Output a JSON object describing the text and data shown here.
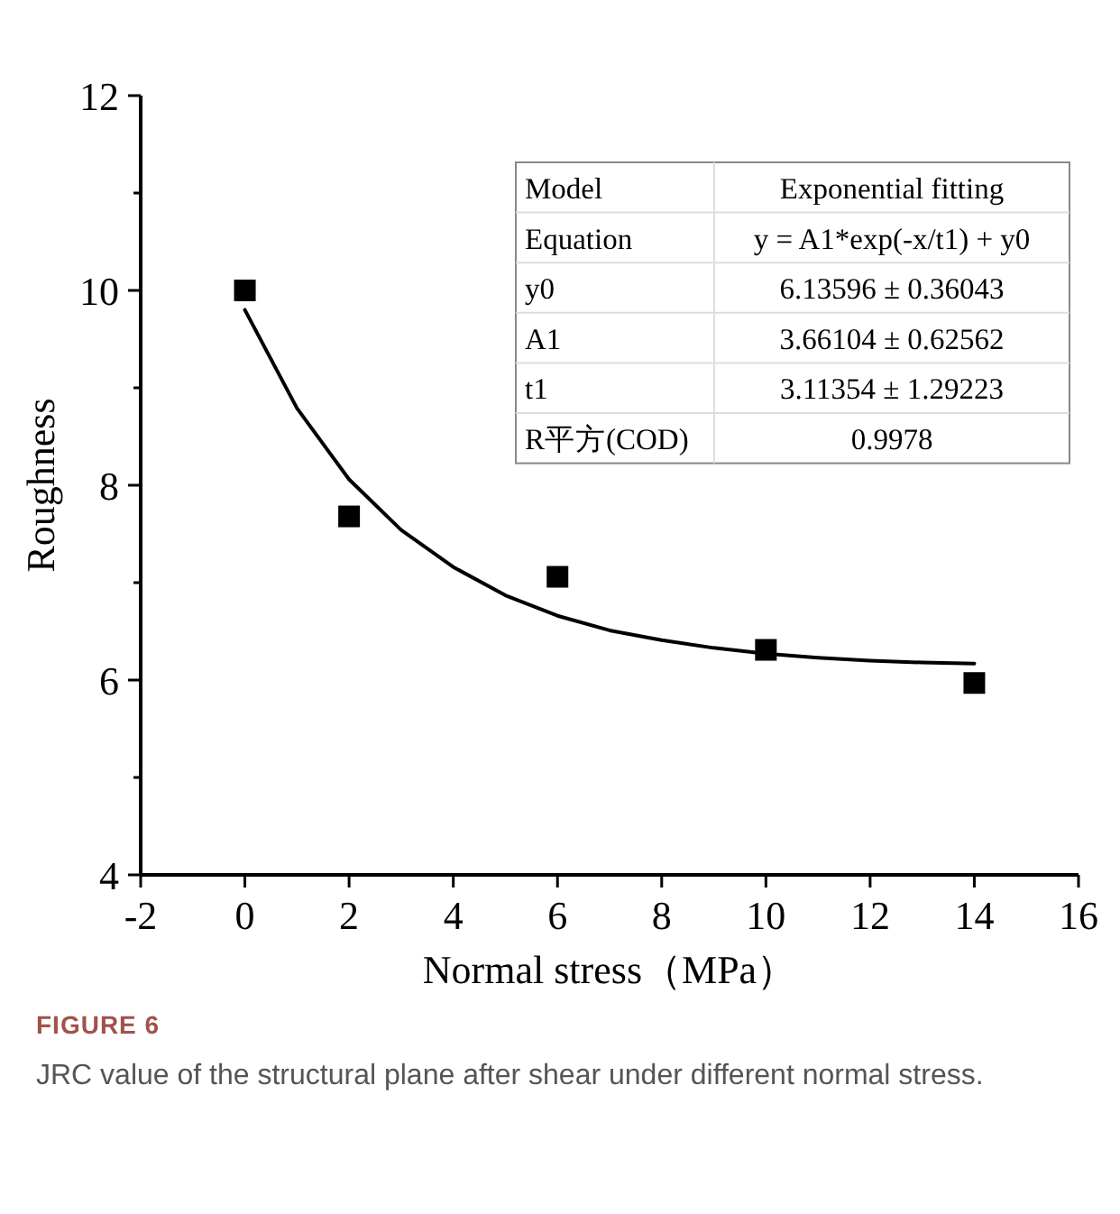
{
  "chart_data": {
    "type": "scatter",
    "xlabel": "Normal stress（MPa）",
    "ylabel": "Roughness",
    "xlim": [
      -2,
      16
    ],
    "xticks": [
      -2,
      0,
      2,
      4,
      6,
      8,
      10,
      12,
      14,
      16
    ],
    "ylim": [
      4,
      12
    ],
    "yticks": [
      4,
      {
        "value": 5,
        "label": null
      },
      6,
      {
        "value": 7,
        "label": null
      },
      8,
      {
        "value": 9,
        "label": null
      },
      10,
      {
        "value": 11,
        "label": null
      },
      12
    ],
    "grid": false,
    "marker": "square",
    "series": [
      {
        "color": "#000000",
        "x": [
          0,
          2,
          6,
          10,
          14
        ],
        "values": [
          10.0,
          7.68,
          7.06,
          6.31,
          5.97
        ]
      },
      {
        "type": "line",
        "color": "#000000",
        "marker": "none",
        "line_style": "solid",
        "x": [
          0,
          1,
          2,
          3,
          4,
          5,
          6,
          7,
          8,
          9,
          10,
          11,
          12,
          13,
          14
        ],
        "values": [
          9.8,
          8.79,
          8.06,
          7.54,
          7.16,
          6.87,
          6.66,
          6.51,
          6.41,
          6.33,
          6.27,
          6.23,
          6.2,
          6.18,
          6.17
        ]
      }
    ],
    "annotations": [
      "Model",
      "Exponential fitting",
      "Equation",
      "y = A1*exp(-x/t1) + y0",
      "y0",
      "6.13596 ± 0.36043",
      "A1",
      "3.66104 ± 0.62562",
      "t1",
      "3.11354 ± 1.29223",
      "R平方(COD)",
      "0.9978",
      "FIGURE 6",
      "JRC value of the structural plane after shear under different normal stress."
    ]
  }
}
